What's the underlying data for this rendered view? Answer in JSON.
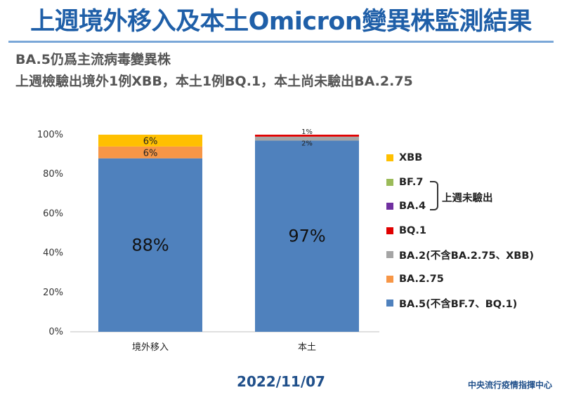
{
  "header": {
    "title": "上週境外移入及本土Omicron變異株監測結果",
    "subtitle_1": "BA.5仍爲主流病毒變異株",
    "subtitle_2": "上週檢驗出境外1例XBB，本土1例BQ.1，本土尚未驗出BA.2.75"
  },
  "chart_data": {
    "type": "bar",
    "stacked": true,
    "percent": true,
    "categories": [
      "境外移入",
      "本土"
    ],
    "ylim": [
      0,
      100
    ],
    "yticks": [
      "0%",
      "20%",
      "40%",
      "60%",
      "80%",
      "100%"
    ],
    "series": [
      {
        "name": "BA.5(不含BF.7、BQ.1)",
        "color": "#4f81bd",
        "values": [
          88,
          97
        ],
        "labels": [
          "88%",
          "97%"
        ]
      },
      {
        "name": "BA.2.75",
        "color": "#f79646",
        "values": [
          6,
          0
        ],
        "labels": [
          "6%",
          ""
        ]
      },
      {
        "name": "BA.2(不含BA.2.75、XBB)",
        "color": "#a5a5a5",
        "values": [
          0,
          2
        ],
        "labels": [
          "",
          "2%"
        ]
      },
      {
        "name": "BQ.1",
        "color": "#e00000",
        "values": [
          0,
          1
        ],
        "labels": [
          "",
          "1%"
        ]
      },
      {
        "name": "BA.4",
        "color": "#7030a0",
        "values": [
          0,
          0
        ],
        "labels": [
          "",
          ""
        ]
      },
      {
        "name": "BF.7",
        "color": "#9bbb59",
        "values": [
          0,
          0
        ],
        "labels": [
          "",
          ""
        ]
      },
      {
        "name": "XBB",
        "color": "#ffc000",
        "values": [
          6,
          0
        ],
        "labels": [
          "6%",
          ""
        ]
      }
    ],
    "legend_order": [
      "XBB",
      "BF.7",
      "BA.4",
      "BQ.1",
      "BA.2(不含BA.2.75、XBB)",
      "BA.2.75",
      "BA.5(不含BF.7、BQ.1)"
    ],
    "legend_position": "right",
    "grid": false
  },
  "legend": {
    "bracket_label": "上週未驗出"
  },
  "footer": {
    "date": "2022/11/07",
    "source": "中央流行疫情指揮中心"
  }
}
